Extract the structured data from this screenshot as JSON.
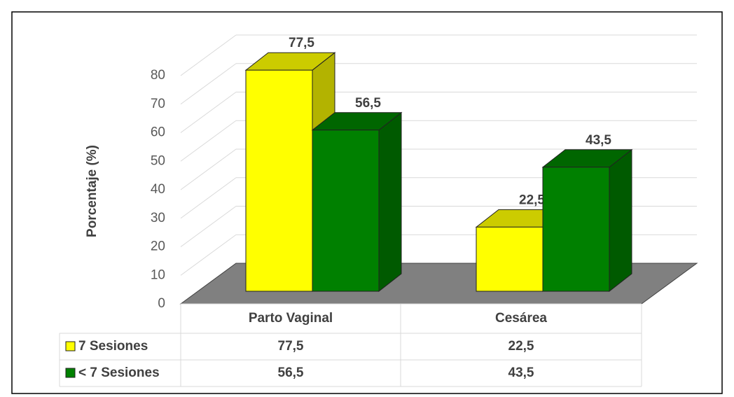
{
  "chart_data": {
    "type": "bar",
    "y_label": "Porcentaje (%)",
    "categories": [
      "Parto Vaginal",
      "Cesárea"
    ],
    "series": [
      {
        "name": "7 Sesiones",
        "color": "#ffff00",
        "values": [
          77.5,
          22.5
        ],
        "value_labels": [
          "77,5",
          "22,5"
        ]
      },
      {
        "name": "< 7 Sesiones",
        "color": "#008000",
        "values": [
          56.5,
          43.5
        ],
        "value_labels": [
          "56,5",
          "43,5"
        ]
      }
    ],
    "ylim": [
      0,
      80
    ],
    "yticks": [
      0,
      10,
      20,
      30,
      40,
      50,
      60,
      70,
      80
    ],
    "grid": true,
    "legend": "table"
  }
}
